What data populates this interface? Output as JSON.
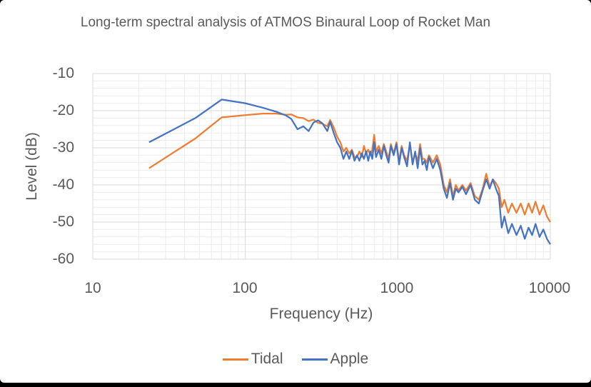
{
  "colors": {
    "tidal": "#ED7D31",
    "apple": "#4472C4",
    "major_grid": "#d9d9d9",
    "minor_grid": "#ececec",
    "axis_text": "#595959"
  },
  "chart_data": {
    "type": "line",
    "title": "Long-term spectral analysis of ATMOS Binaural Loop of Rocket Man",
    "xlabel": "Frequency (Hz)",
    "ylabel": "Level (dB)",
    "x_scale": "log",
    "xlim": [
      10,
      10000
    ],
    "ylim": [
      -60,
      -10
    ],
    "x_ticks": [
      10,
      100,
      1000,
      10000
    ],
    "x_tick_labels": [
      "10",
      "100",
      "1000",
      "10000"
    ],
    "y_ticks": [
      -10,
      -20,
      -30,
      -40,
      -50,
      -60
    ],
    "y_tick_labels": [
      "-10",
      "-20",
      "-30",
      "-40",
      "-50",
      "-60"
    ],
    "grid": true,
    "legend_position": "bottom",
    "series": [
      {
        "name": "Tidal",
        "color": "#ED7D31",
        "points": [
          [
            23.4,
            -35.5
          ],
          [
            47,
            -27.5
          ],
          [
            70,
            -21.8
          ],
          [
            100,
            -21.2
          ],
          [
            130,
            -20.8
          ],
          [
            160,
            -20.8
          ],
          [
            185,
            -21.1
          ],
          [
            200,
            -21.0
          ],
          [
            220,
            -21.8
          ],
          [
            240,
            -22.0
          ],
          [
            260,
            -22.8
          ],
          [
            280,
            -22.4
          ],
          [
            300,
            -23.3
          ],
          [
            320,
            -23.5
          ],
          [
            345,
            -24.2
          ],
          [
            360,
            -22.5
          ],
          [
            380,
            -24.5
          ],
          [
            400,
            -27.0
          ],
          [
            420,
            -28.5
          ],
          [
            440,
            -31.0
          ],
          [
            460,
            -30.0
          ],
          [
            480,
            -31.5
          ],
          [
            500,
            -30.5
          ],
          [
            520,
            -32.5
          ],
          [
            540,
            -32.5
          ],
          [
            560,
            -31.0
          ],
          [
            580,
            -32.5
          ],
          [
            600,
            -29.5
          ],
          [
            620,
            -31.5
          ],
          [
            640,
            -30.5
          ],
          [
            660,
            -32.0
          ],
          [
            680,
            -30.5
          ],
          [
            700,
            -26.5
          ],
          [
            720,
            -31.0
          ],
          [
            750,
            -29.5
          ],
          [
            780,
            -31.5
          ],
          [
            810,
            -29.0
          ],
          [
            840,
            -31.0
          ],
          [
            870,
            -33.0
          ],
          [
            900,
            -29.0
          ],
          [
            940,
            -31.5
          ],
          [
            980,
            -28.5
          ],
          [
            1020,
            -33.5
          ],
          [
            1060,
            -29.5
          ],
          [
            1100,
            -32.0
          ],
          [
            1150,
            -33.5
          ],
          [
            1200,
            -29.0
          ],
          [
            1250,
            -34.0
          ],
          [
            1300,
            -31.5
          ],
          [
            1350,
            -33.5
          ],
          [
            1400,
            -29.0
          ],
          [
            1450,
            -33.0
          ],
          [
            1500,
            -33.0
          ],
          [
            1550,
            -34.0
          ],
          [
            1600,
            -32.0
          ],
          [
            1700,
            -34.0
          ],
          [
            1800,
            -32.0
          ],
          [
            1900,
            -34.5
          ],
          [
            2000,
            -40.0
          ],
          [
            2100,
            -42.0
          ],
          [
            2200,
            -38.5
          ],
          [
            2300,
            -43.0
          ],
          [
            2400,
            -40.0
          ],
          [
            2500,
            -41.5
          ],
          [
            2650,
            -40.0
          ],
          [
            2800,
            -41.5
          ],
          [
            3000,
            -39.5
          ],
          [
            3200,
            -43.0
          ],
          [
            3400,
            -44.0
          ],
          [
            3600,
            -41.0
          ],
          [
            3800,
            -37.0
          ],
          [
            4000,
            -40.5
          ],
          [
            4200,
            -38.5
          ],
          [
            4400,
            -39.5
          ],
          [
            4600,
            -41.0
          ],
          [
            4800,
            -46.0
          ],
          [
            5000,
            -44.0
          ],
          [
            5300,
            -47.5
          ],
          [
            5600,
            -45.0
          ],
          [
            6000,
            -47.5
          ],
          [
            6400,
            -45.0
          ],
          [
            6800,
            -48.0
          ],
          [
            7200,
            -45.0
          ],
          [
            7600,
            -47.5
          ],
          [
            8000,
            -44.5
          ],
          [
            8500,
            -48.0
          ],
          [
            9000,
            -45.5
          ],
          [
            9500,
            -48.5
          ],
          [
            10000,
            -50.0
          ]
        ]
      },
      {
        "name": "Apple",
        "color": "#4472C4",
        "points": [
          [
            23.4,
            -28.5
          ],
          [
            47,
            -22.0
          ],
          [
            70,
            -17.0
          ],
          [
            100,
            -18.0
          ],
          [
            130,
            -19.2
          ],
          [
            160,
            -20.3
          ],
          [
            185,
            -21.3
          ],
          [
            200,
            -22.2
          ],
          [
            220,
            -25.0
          ],
          [
            240,
            -24.2
          ],
          [
            260,
            -25.5
          ],
          [
            280,
            -23.2
          ],
          [
            300,
            -22.6
          ],
          [
            320,
            -23.4
          ],
          [
            345,
            -25.5
          ],
          [
            360,
            -23.0
          ],
          [
            380,
            -26.0
          ],
          [
            400,
            -28.5
          ],
          [
            420,
            -30.0
          ],
          [
            440,
            -33.0
          ],
          [
            460,
            -31.0
          ],
          [
            480,
            -33.0
          ],
          [
            500,
            -30.8
          ],
          [
            520,
            -33.5
          ],
          [
            540,
            -32.0
          ],
          [
            560,
            -33.5
          ],
          [
            580,
            -31.5
          ],
          [
            600,
            -33.0
          ],
          [
            620,
            -31.0
          ],
          [
            640,
            -33.5
          ],
          [
            660,
            -31.0
          ],
          [
            680,
            -33.0
          ],
          [
            700,
            -28.5
          ],
          [
            720,
            -32.5
          ],
          [
            750,
            -30.5
          ],
          [
            780,
            -33.0
          ],
          [
            810,
            -29.5
          ],
          [
            840,
            -32.0
          ],
          [
            870,
            -34.0
          ],
          [
            900,
            -29.5
          ],
          [
            940,
            -32.0
          ],
          [
            980,
            -29.0
          ],
          [
            1020,
            -34.5
          ],
          [
            1060,
            -30.0
          ],
          [
            1100,
            -32.5
          ],
          [
            1150,
            -35.0
          ],
          [
            1200,
            -28.5
          ],
          [
            1250,
            -34.5
          ],
          [
            1300,
            -31.0
          ],
          [
            1350,
            -35.5
          ],
          [
            1400,
            -30.0
          ],
          [
            1450,
            -34.5
          ],
          [
            1500,
            -33.5
          ],
          [
            1550,
            -36.0
          ],
          [
            1600,
            -32.5
          ],
          [
            1700,
            -35.5
          ],
          [
            1800,
            -33.0
          ],
          [
            1900,
            -36.0
          ],
          [
            2000,
            -41.0
          ],
          [
            2100,
            -43.5
          ],
          [
            2200,
            -39.5
          ],
          [
            2300,
            -44.0
          ],
          [
            2400,
            -41.0
          ],
          [
            2500,
            -42.0
          ],
          [
            2650,
            -40.5
          ],
          [
            2800,
            -42.5
          ],
          [
            3000,
            -40.0
          ],
          [
            3200,
            -44.0
          ],
          [
            3400,
            -45.0
          ],
          [
            3600,
            -41.5
          ],
          [
            3800,
            -38.5
          ],
          [
            4000,
            -41.0
          ],
          [
            4200,
            -38.5
          ],
          [
            4400,
            -41.0
          ],
          [
            4600,
            -43.0
          ],
          [
            4800,
            -51.5
          ],
          [
            5000,
            -48.5
          ],
          [
            5300,
            -53.0
          ],
          [
            5600,
            -50.5
          ],
          [
            6000,
            -53.5
          ],
          [
            6400,
            -51.0
          ],
          [
            6800,
            -54.5
          ],
          [
            7200,
            -51.5
          ],
          [
            7600,
            -53.5
          ],
          [
            8000,
            -50.5
          ],
          [
            8500,
            -54.0
          ],
          [
            9000,
            -52.0
          ],
          [
            9500,
            -54.5
          ],
          [
            10000,
            -56.0
          ]
        ]
      }
    ]
  }
}
